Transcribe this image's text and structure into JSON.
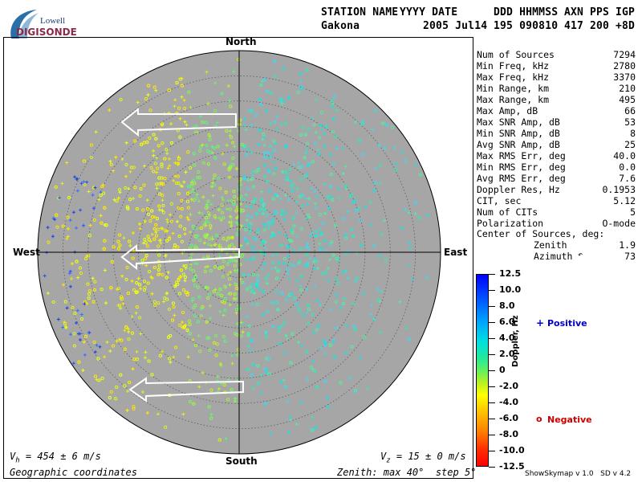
{
  "logo": {
    "line1": "Lowell",
    "line2": "DIGISONDE"
  },
  "header": {
    "labels": [
      "STATION NAME",
      "YYYY DATE",
      "DDD HHMMSS",
      "AXN",
      "PPS",
      "IGP"
    ],
    "values": [
      "Gakona",
      "2005 Jul14",
      "195 090810",
      "417",
      "200",
      "+8D"
    ]
  },
  "directions": {
    "north": "North",
    "south": "South",
    "east": "East",
    "west": "West"
  },
  "stats": [
    {
      "label": "Num of Sources",
      "value": "7294"
    },
    {
      "label": "Min Freq, kHz",
      "value": "2780"
    },
    {
      "label": "Max Freq, kHz",
      "value": "3370"
    },
    {
      "label": "Min Range, km",
      "value": "210"
    },
    {
      "label": "Max Range, km",
      "value": "495"
    },
    {
      "label": "Max Amp, dB",
      "value": "66"
    },
    {
      "label": "Max SNR Amp, dB",
      "value": "53"
    },
    {
      "label": "Min SNR Amp, dB",
      "value": "8"
    },
    {
      "label": "Avg SNR Amp, dB",
      "value": "25"
    },
    {
      "label": "Max RMS Err, deg",
      "value": "40.0"
    },
    {
      "label": "Min RMS Err, deg",
      "value": "0.0"
    },
    {
      "label": "Avg RMS Err, deg",
      "value": "7.6"
    },
    {
      "label": "Doppler Res, Hz",
      "value": "0.1953"
    },
    {
      "label": "CIT, sec",
      "value": "5.12"
    },
    {
      "label": "Num of CITs",
      "value": "5"
    },
    {
      "label": "Polarization",
      "value": "O-mode"
    }
  ],
  "center": {
    "title": "Center of Sources, deg:",
    "zenith_label": "Zenith",
    "zenith_value": "1.9",
    "azimuth_label": "Azimuth",
    "azimuth_value": "73"
  },
  "colorbar": {
    "ticks": [
      "12.5",
      "10.0",
      "8.0",
      "6.0",
      "4.0",
      "2.0",
      "0",
      "-2.0",
      "-4.0",
      "-6.0",
      "-8.0",
      "-10.0",
      "-12.5"
    ],
    "label": "Doppler, Hz"
  },
  "legend": {
    "positive_symbol": "+",
    "positive": "Positive",
    "negative_symbol": "o",
    "negative": "Negative",
    "positive_color": "#0000cc",
    "negative_color": "#cc0000"
  },
  "footer": {
    "vh_main": "V",
    "vh_sub": "h",
    "vh_rest": " = 454 ± 6 m/s",
    "vz_main": "V",
    "vz_sub": "z",
    "vz_rest": " = 15 ± 0 m/s",
    "coords": "Geographic coordinates",
    "zenith": "Zenith: max 40°  step 5°",
    "version": "ShowSkymap v 1.0   SD v 4.2"
  },
  "colors": {
    "disk": "#a6a6a6",
    "grid": "#5a5a5a",
    "axis": "#000000",
    "arrow": "#ffffff"
  }
}
